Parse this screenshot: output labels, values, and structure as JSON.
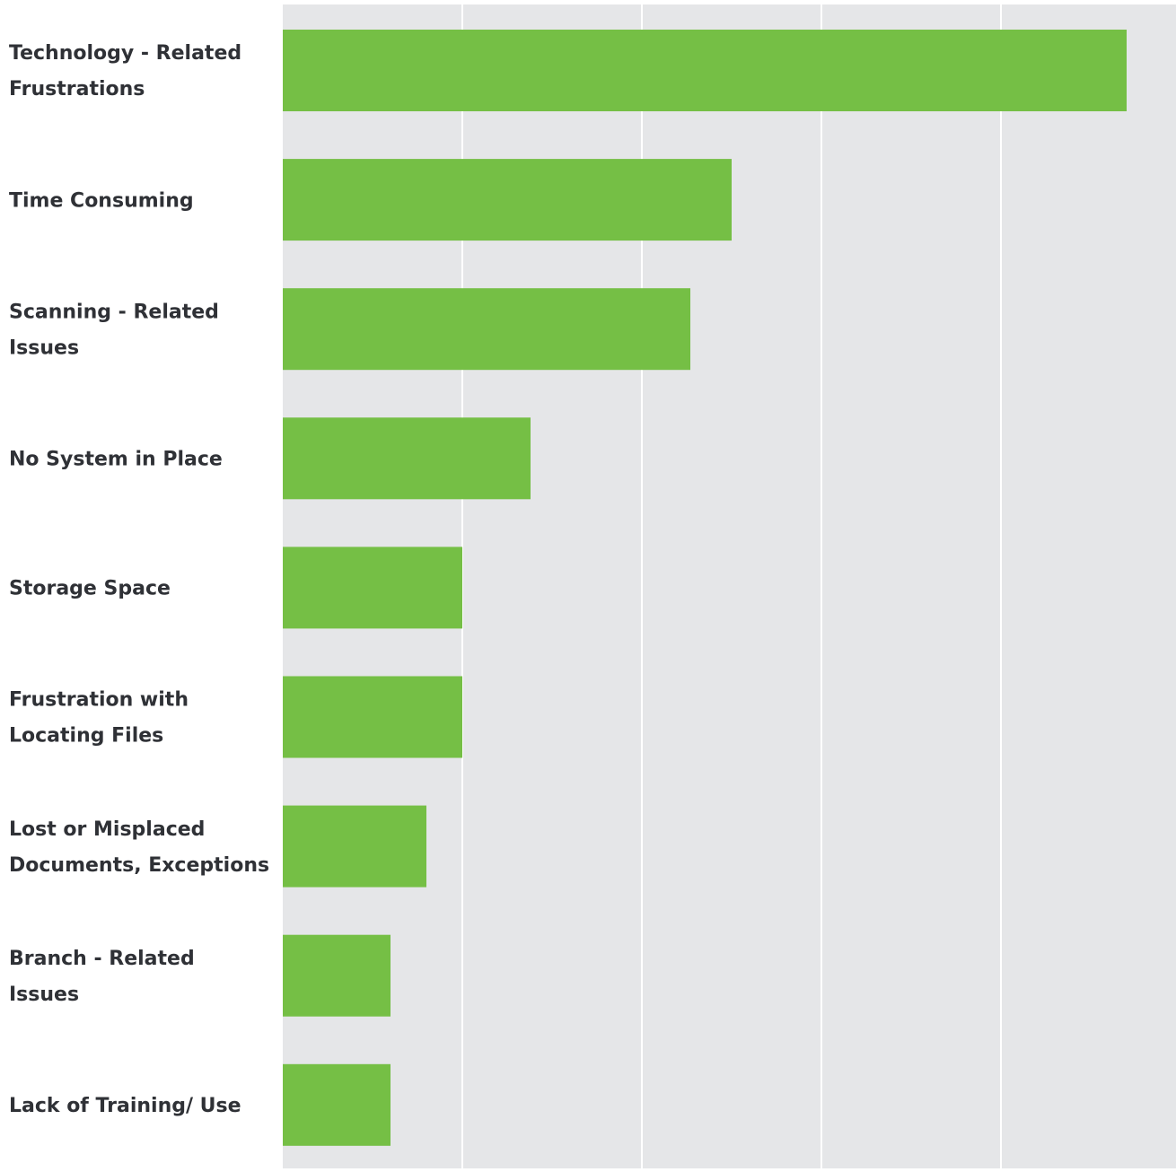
{
  "chart_data": {
    "type": "bar",
    "orientation": "horizontal",
    "title": "",
    "xlabel": "",
    "ylabel": "",
    "categories": [
      [
        "Technology - Related",
        "Frustrations"
      ],
      [
        "Time Consuming"
      ],
      [
        "Scanning - Related",
        "Issues"
      ],
      [
        "No System in Place"
      ],
      [
        "Storage Space"
      ],
      [
        "Frustration with",
        "Locating Files"
      ],
      [
        "Lost or Misplaced",
        "Documents, Exceptions"
      ],
      [
        "Branch - Related",
        "Issues"
      ],
      [
        "Lack of Training/ Use"
      ]
    ],
    "values": [
      4.7,
      2.5,
      2.27,
      1.38,
      1.0,
      1.0,
      0.8,
      0.6,
      0.6
    ],
    "xlim": [
      0,
      5
    ],
    "x_ticks": [
      0,
      1,
      2,
      3,
      4,
      5
    ],
    "tick_labels_visible": false,
    "grid": true,
    "legend": "none",
    "colors": {
      "bar": "#75bf45",
      "plot_background": "#e5e6e8",
      "gridline": "#ffffff",
      "label_text": "#2f3136"
    }
  }
}
